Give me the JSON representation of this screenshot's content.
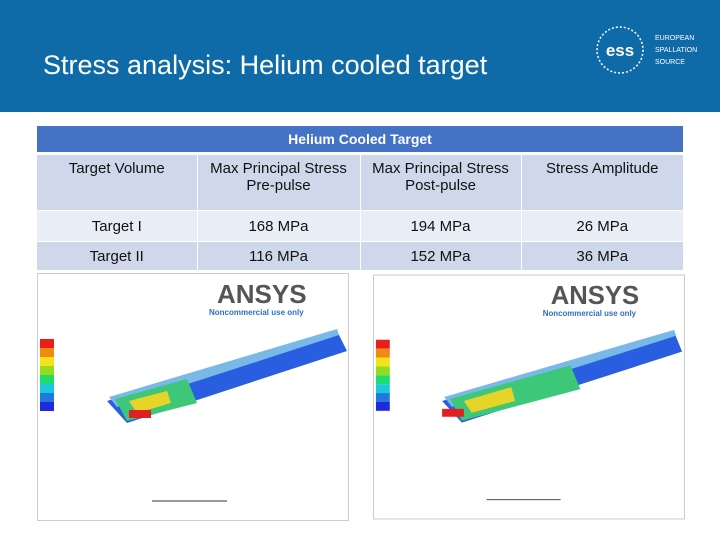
{
  "header": {
    "title": "Stress analysis: Helium cooled target",
    "logo_mark": "ess",
    "logo_text": [
      "EUROPEAN",
      "SPALLATION",
      "SOURCE"
    ]
  },
  "table": {
    "title": "Helium Cooled Target",
    "columns": [
      "Target Volume",
      "Max Principal Stress Pre-pulse",
      "Max Principal Stress Post-pulse",
      "Stress Amplitude"
    ],
    "rows": [
      [
        "Target I",
        "168 MPa",
        "194 MPa",
        "26 MPa"
      ],
      [
        "Target II",
        "116 MPa",
        "152 MPa",
        "36 MPa"
      ]
    ]
  },
  "images": [
    {
      "brand": "ANSYS",
      "watermark": "Noncommercial use only"
    },
    {
      "brand": "ANSYS",
      "watermark": "Noncommercial use only"
    }
  ]
}
